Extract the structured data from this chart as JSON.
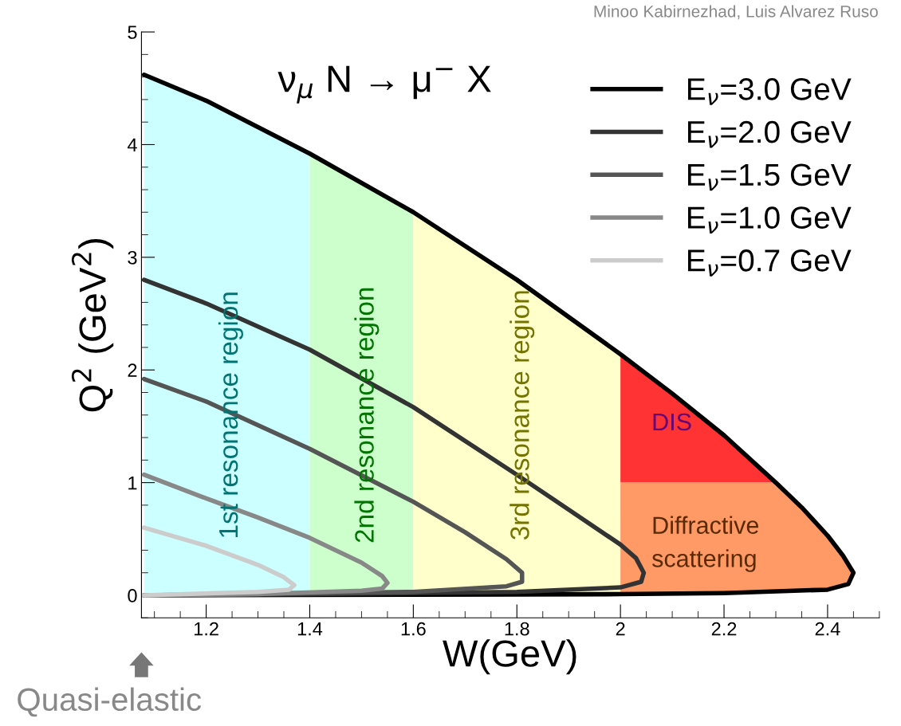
{
  "chart_data": {
    "type": "line",
    "title": "ν$_{μ}$ N → μ$^{−}$ X",
    "xlabel": "W(GeV)",
    "ylabel": "Q$^{2}$ (GeV$^{2}$)",
    "xlim": [
      1.075,
      2.5
    ],
    "ylim": [
      -0.2,
      5
    ],
    "xticks": [
      1.2,
      1.4,
      1.6,
      1.8,
      2,
      2.2,
      2.4
    ],
    "yticks": [
      0,
      1,
      2,
      3,
      4,
      5
    ],
    "grid": false,
    "legend": "top right",
    "marker": "none",
    "line_style": "solid",
    "series": [
      {
        "name": "E$_{ν}$=3.0 GeV",
        "color": "#000000",
        "x": [
          1.08,
          1.2,
          1.4,
          1.6,
          1.8,
          2.0,
          2.1,
          2.2,
          2.3,
          2.35,
          2.4,
          2.43,
          2.45,
          2.44,
          2.4,
          2.2,
          2.0,
          1.6,
          1.08
        ],
        "values": [
          4.62,
          4.39,
          3.92,
          3.4,
          2.8,
          2.14,
          1.79,
          1.42,
          1.0,
          0.78,
          0.53,
          0.35,
          0.2,
          0.1,
          0.05,
          0.02,
          0.01,
          0.005,
          0.0
        ]
      },
      {
        "name": "E$_{ν}$=2.0 GeV",
        "color": "#333333",
        "x": [
          1.08,
          1.2,
          1.4,
          1.6,
          1.8,
          1.9,
          2.0,
          2.03,
          2.045,
          2.04,
          2.0,
          1.8,
          1.4,
          1.08
        ],
        "values": [
          2.8,
          2.59,
          2.18,
          1.67,
          1.07,
          0.76,
          0.45,
          0.33,
          0.2,
          0.12,
          0.07,
          0.03,
          0.01,
          0.0
        ]
      },
      {
        "name": "E$_{ν}$=1.5 GeV",
        "color": "#555555",
        "x": [
          1.08,
          1.2,
          1.4,
          1.6,
          1.7,
          1.78,
          1.81,
          1.81,
          1.78,
          1.6,
          1.08
        ],
        "values": [
          1.92,
          1.72,
          1.3,
          0.83,
          0.56,
          0.32,
          0.2,
          0.12,
          0.08,
          0.03,
          0.0
        ]
      },
      {
        "name": "E$_{ν}$=1.0 GeV",
        "color": "#888888",
        "x": [
          1.08,
          1.2,
          1.3,
          1.4,
          1.5,
          1.54,
          1.55,
          1.54,
          1.5,
          1.3,
          1.08
        ],
        "values": [
          1.07,
          0.86,
          0.69,
          0.51,
          0.29,
          0.17,
          0.11,
          0.06,
          0.04,
          0.01,
          0.0
        ]
      },
      {
        "name": "E$_{ν}$=0.7 GeV",
        "color": "#cccccc",
        "x": [
          1.08,
          1.2,
          1.3,
          1.35,
          1.37,
          1.36,
          1.3,
          1.08
        ],
        "values": [
          0.6,
          0.44,
          0.27,
          0.16,
          0.09,
          0.05,
          0.03,
          0.0
        ]
      },
      {
        "type": "area",
        "name": "DIS",
        "color": "#ff3333",
        "x": [
          2.0,
          2.1,
          2.2,
          2.3,
          2.0
        ],
        "values": [
          2.14,
          1.79,
          1.42,
          1.0,
          1.0
        ]
      },
      {
        "type": "area",
        "name": "Diffractive\nscattering",
        "color": "#ff9966",
        "x": [
          2.0,
          2.3,
          2.35,
          2.4,
          2.43,
          2.45,
          2.44,
          2.4,
          2.2,
          2.0
        ],
        "values": [
          1.0,
          1.0,
          0.78,
          0.53,
          0.35,
          0.2,
          0.1,
          0.05,
          0.02,
          0.01
        ]
      }
    ],
    "bands": [
      {
        "axis": "x",
        "from": 1.075,
        "to": 1.4,
        "label": "1st resonance region",
        "color": "#ccffff"
      },
      {
        "axis": "x",
        "from": 1.4,
        "to": 1.6,
        "label": "2nd resonance region",
        "color": "#ccffcc"
      },
      {
        "axis": "x",
        "from": 1.6,
        "to": 2.0,
        "label": "3rd resonance region",
        "color": "#ffffcc"
      }
    ],
    "annotations": [
      "Quasi-elastic",
      "Minoo Kabirnezhad, Luis Alvarez Ruso"
    ]
  }
}
